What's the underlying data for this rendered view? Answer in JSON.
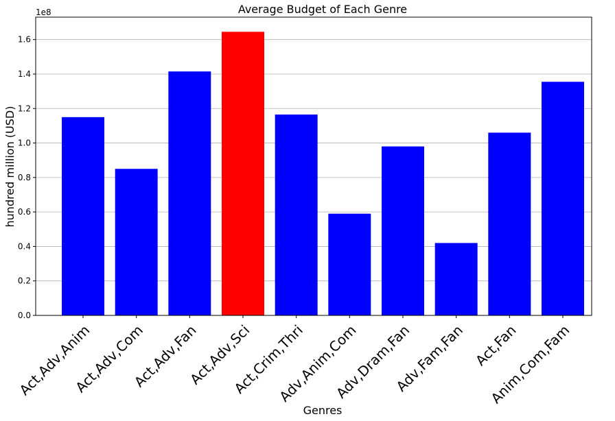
{
  "chart_data": {
    "type": "bar",
    "title": "Average Budget of Each Genre",
    "xlabel": "Genres",
    "ylabel": "hundred million (USD)",
    "y_offset_label": "1e8",
    "ylim": [
      0,
      1.73
    ],
    "y_ticks": [
      "0.0",
      "0.2",
      "0.4",
      "0.6",
      "0.8",
      "1.0",
      "1.2",
      "1.4",
      "1.6"
    ],
    "grid": "horizontal",
    "categories": [
      "Act,Adv,Anim",
      "Act,Adv,Com",
      "Act,Adv,Fan",
      "Act,Adv,Sci",
      "Act,Crim,Thri",
      "Adv,Anim,Com",
      "Adv,Dram,Fan",
      "Adv,Fam,Fan",
      "Act,Fan",
      "Anim,Com,Fam"
    ],
    "values": [
      1.15,
      0.85,
      1.415,
      1.645,
      1.165,
      0.59,
      0.98,
      0.42,
      1.06,
      1.355
    ],
    "colors": [
      "#0000ff",
      "#0000ff",
      "#0000ff",
      "#ff0000",
      "#0000ff",
      "#0000ff",
      "#0000ff",
      "#0000ff",
      "#0000ff",
      "#0000ff"
    ]
  }
}
